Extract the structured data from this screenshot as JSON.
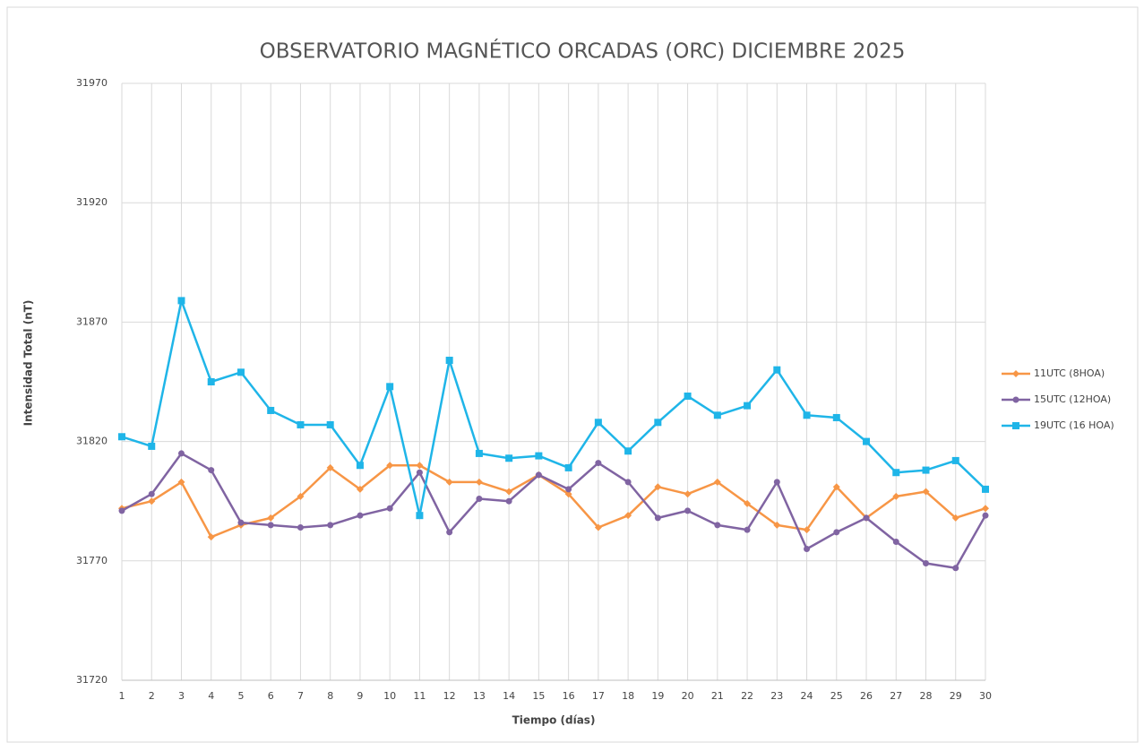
{
  "chart_data": {
    "type": "line",
    "title": "OBSERVATORIO MAGNÉTICO ORCADAS (ORC) DICIEMBRE 2025",
    "x_label": "Tiempo (días)",
    "y_label": "Intensidad Total (nT)",
    "categories": [
      "1",
      "2",
      "3",
      "4",
      "5",
      "6",
      "7",
      "8",
      "9",
      "10",
      "11",
      "12",
      "13",
      "14",
      "15",
      "16",
      "17",
      "18",
      "19",
      "20",
      "21",
      "22",
      "23",
      "24",
      "25",
      "26",
      "27",
      "28",
      "29",
      "30"
    ],
    "ylim": [
      31720,
      31970
    ],
    "yticks": [
      31720,
      31770,
      31820,
      31870,
      31920,
      31970
    ],
    "grid": true,
    "legend": "right",
    "series": [
      {
        "name": "11UTC (8HOA)",
        "color": "#f79646",
        "marker": "diamond",
        "values": [
          31792,
          31795,
          31803,
          31780,
          31785,
          31788,
          31797,
          31809,
          31800,
          31810,
          31810,
          31803,
          31803,
          31799,
          31806,
          31798,
          31784,
          31789,
          31801,
          31798,
          31803,
          31794,
          31785,
          31783,
          31801,
          31788,
          31797,
          31799,
          31788,
          31792
        ]
      },
      {
        "name": "15UTC (12HOA)",
        "color": "#8064a2",
        "marker": "circle",
        "values": [
          31791,
          31798,
          31815,
          31808,
          31786,
          31785,
          31784,
          31785,
          31789,
          31792,
          31807,
          31782,
          31796,
          31795,
          31806,
          31800,
          31811,
          31803,
          31788,
          31791,
          31785,
          31783,
          31803,
          31775,
          31782,
          31788,
          31778,
          31769,
          31767,
          31789
        ]
      },
      {
        "name": "19UTC (16 HOA)",
        "color": "#1fb5e8",
        "marker": "square",
        "values": [
          31822,
          31818,
          31879,
          31845,
          31849,
          31833,
          31827,
          31827,
          31810,
          31843,
          31789,
          31854,
          31815,
          31813,
          31814,
          31809,
          31828,
          31816,
          31828,
          31839,
          31831,
          31835,
          31850,
          31831,
          31830,
          31820,
          31807,
          31808,
          31812,
          31800
        ]
      }
    ]
  }
}
